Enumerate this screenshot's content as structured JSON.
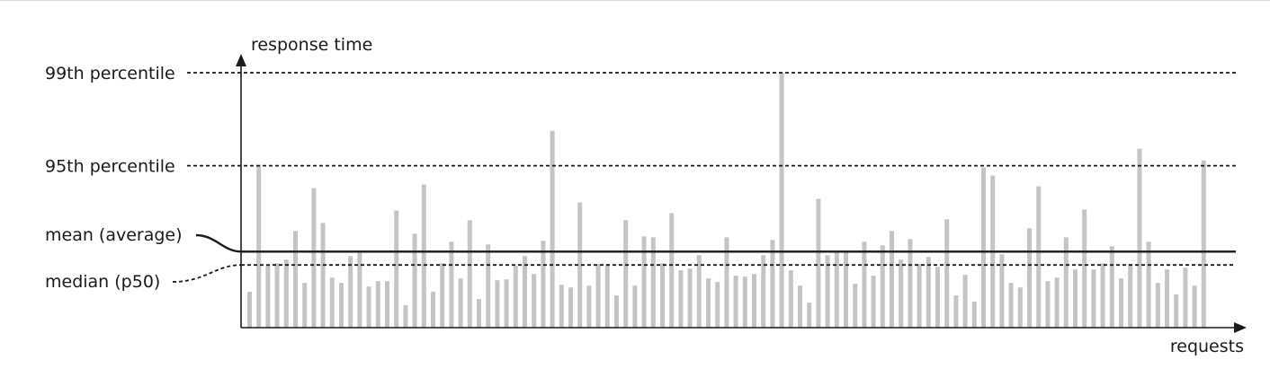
{
  "chart_data": {
    "type": "bar",
    "xlabel": "requests",
    "ylabel": "response time",
    "bar_color": "#c4c4c4",
    "line_color": "#1a1a1a",
    "values": [
      40,
      182,
      70,
      72,
      76,
      108,
      50,
      156,
      117,
      56,
      50,
      80,
      84,
      46,
      52,
      52,
      131,
      25,
      105,
      160,
      40,
      72,
      96,
      55,
      120,
      32,
      93,
      53,
      54,
      69,
      80,
      60,
      97,
      220,
      48,
      45,
      140,
      47,
      71,
      71,
      36,
      120,
      47,
      102,
      101,
      72,
      128,
      64,
      66,
      81,
      55,
      51,
      101,
      58,
      57,
      60,
      81,
      98,
      285,
      64,
      47,
      28,
      144,
      81,
      86,
      84,
      49,
      96,
      58,
      92,
      108,
      76,
      99,
      71,
      79,
      68,
      121,
      36,
      59,
      29,
      179,
      170,
      82,
      50,
      45,
      111,
      158,
      52,
      56,
      101,
      65,
      132,
      65,
      72,
      91,
      55,
      71,
      200,
      96,
      50,
      65,
      37,
      67,
      47,
      187
    ],
    "reference_lines": [
      {
        "label": "99th percentile",
        "value": 285,
        "style": "dashed"
      },
      {
        "label": "95th percentile",
        "value": 181,
        "style": "dashed"
      },
      {
        "label": "mean (average)",
        "value": 85,
        "style": "solid"
      },
      {
        "label": "median (p50)",
        "value": 70,
        "style": "dashed"
      }
    ]
  }
}
